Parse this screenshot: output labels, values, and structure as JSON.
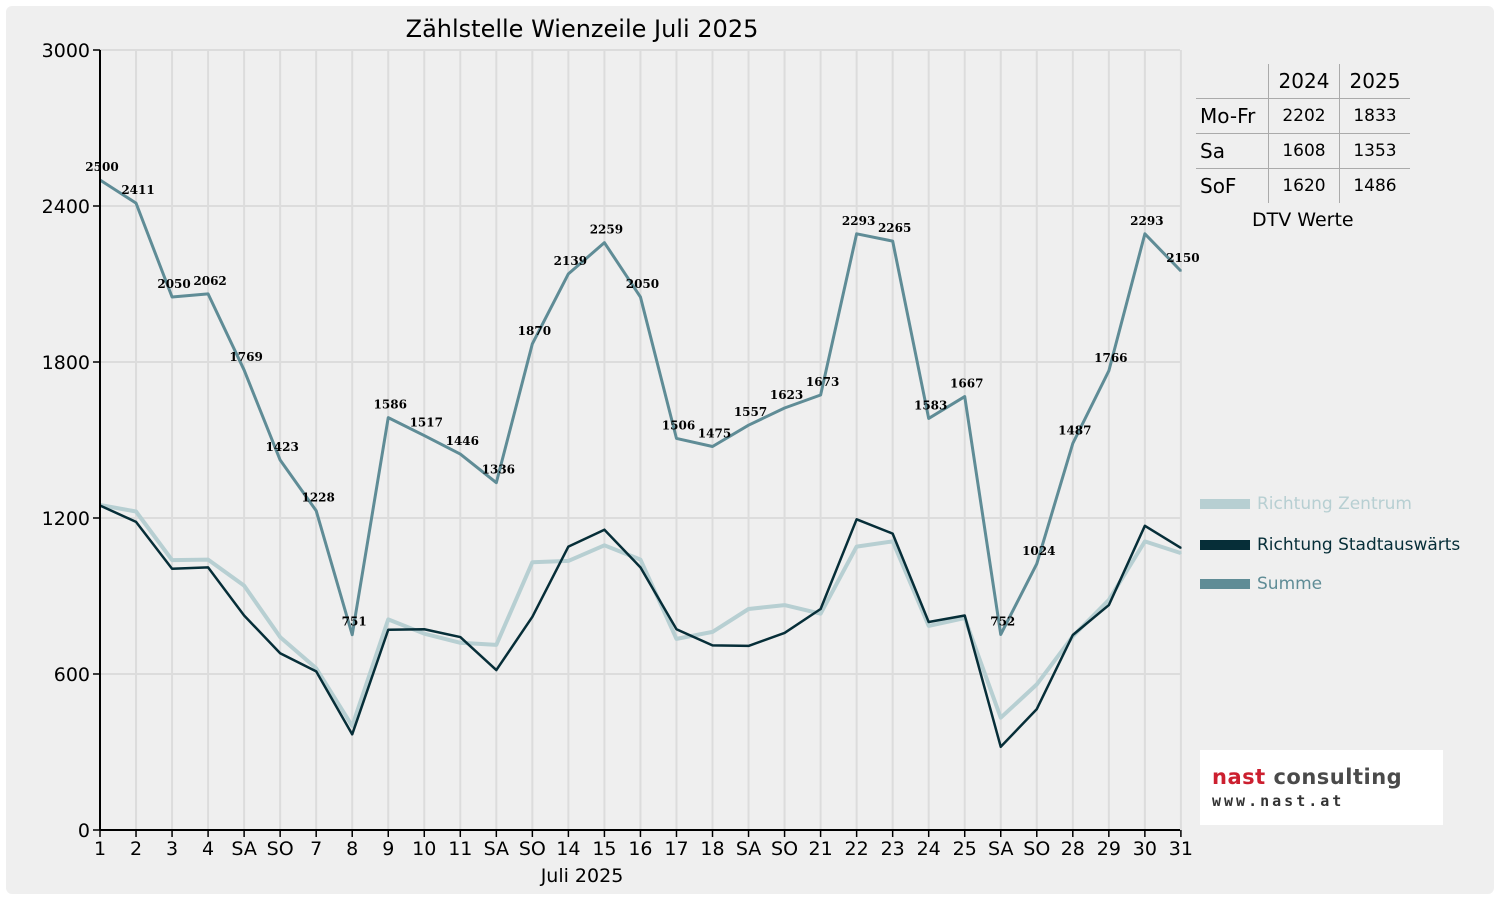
{
  "chart_data": {
    "type": "line",
    "title": "Zählstelle Wienzeile Juli 2025",
    "xlabel": "Juli 2025",
    "ylabel": "",
    "ylim": [
      0,
      3000
    ],
    "yticks": [
      0,
      600,
      1200,
      1800,
      2400,
      3000
    ],
    "grid": true,
    "legend_position": "right",
    "categories": [
      "1",
      "2",
      "3",
      "4",
      "SA",
      "SO",
      "7",
      "8",
      "9",
      "10",
      "11",
      "SA",
      "SO",
      "14",
      "15",
      "16",
      "17",
      "18",
      "SA",
      "SO",
      "21",
      "22",
      "23",
      "24",
      "25",
      "SA",
      "SO",
      "28",
      "29",
      "30",
      "31"
    ],
    "weekend_color": "#ff0000",
    "series": [
      {
        "name": "Richtung Zentrum",
        "color": "#b7cfd2",
        "width": 4,
        "values": [
          1250,
          1225,
          1038,
          1040,
          940,
          742,
          622,
          400,
          810,
          755,
          720,
          712,
          1030,
          1035,
          1095,
          1040,
          735,
          762,
          850,
          865,
          832,
          1090,
          1110,
          785,
          815,
          432,
          560,
          745,
          885,
          1110,
          1065
        ]
      },
      {
        "name": "Richtung Stadtauswärts",
        "color": "#062e38",
        "width": 2.5,
        "values": [
          1248,
          1185,
          1005,
          1010,
          825,
          680,
          610,
          368,
          770,
          772,
          742,
          615,
          820,
          1090,
          1155,
          1010,
          772,
          710,
          708,
          758,
          850,
          1195,
          1140,
          800,
          825,
          320,
          465,
          750,
          865,
          1170,
          1085
        ]
      },
      {
        "name": "Summe",
        "color": "#5f8c96",
        "width": 3,
        "values": [
          2500,
          2411,
          2050,
          2062,
          1769,
          1423,
          1228,
          751,
          1586,
          1517,
          1446,
          1336,
          1870,
          2139,
          2259,
          2050,
          1506,
          1475,
          1557,
          1623,
          1673,
          2293,
          2265,
          1583,
          1667,
          752,
          1024,
          1487,
          1766,
          2293,
          2150
        ]
      }
    ],
    "data_labels": [
      "2500",
      "2411",
      "2050",
      "2062",
      "1769",
      "1423",
      "1228",
      "751",
      "1586",
      "1517",
      "1446",
      "1336",
      "1870",
      "2139",
      "2259",
      "2050",
      "1506",
      "1475",
      "1557",
      "1623",
      "1673",
      "2293",
      "2265",
      "1583",
      "1667",
      "752",
      "1024",
      "1487",
      "1766",
      "2293",
      "2150"
    ]
  },
  "dtv_table": {
    "headers": [
      "",
      "2024",
      "2025"
    ],
    "rows": [
      {
        "label": "Mo-Fr",
        "v2024": "2202",
        "v2025": "1833"
      },
      {
        "label": "Sa",
        "v2024": "1608",
        "v2025": "1353"
      },
      {
        "label": "SoF",
        "v2024": "1620",
        "v2025": "1486"
      }
    ],
    "caption": "DTV Werte"
  },
  "logo": {
    "name_red": "nast ",
    "name_dark": "consulting",
    "url": "www.nast.at"
  }
}
